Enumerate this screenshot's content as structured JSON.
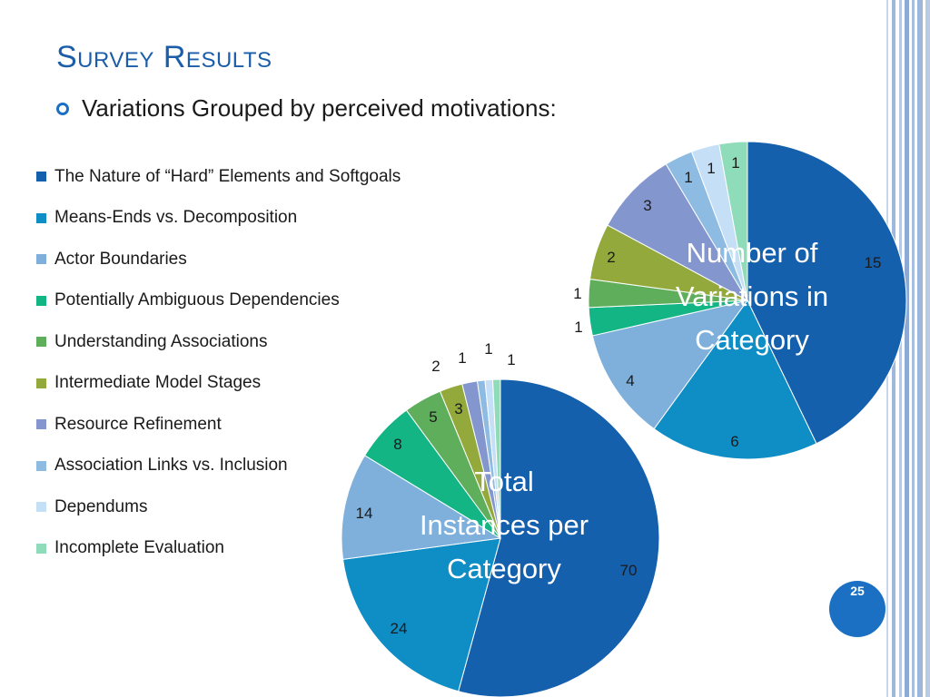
{
  "slide": {
    "title": "Survey Results",
    "subtitle": "Variations Grouped by perceived motivations:",
    "page_number": "25",
    "accent_color": "#1b70c4"
  },
  "legend": [
    {
      "label": "The Nature of “Hard” Elements and Softgoals",
      "color": "#1560ac"
    },
    {
      "label": "Means-Ends vs. Decomposition",
      "color": "#0f8dc5"
    },
    {
      "label": "Actor Boundaries",
      "color": "#7fb0dc"
    },
    {
      "label": "Potentially Ambiguous Dependencies",
      "color": "#13b585"
    },
    {
      "label": "Understanding Associations",
      "color": "#5fae5c"
    },
    {
      "label": "Intermediate Model Stages",
      "color": "#93a93b"
    },
    {
      "label": "Resource Refinement",
      "color": "#8396ce"
    },
    {
      "label": "Association Links vs. Inclusion",
      "color": "#8dbbe2"
    },
    {
      "label": "Dependums",
      "color": "#c4dff6"
    },
    {
      "label": "Incomplete Evaluation",
      "color": "#8fdcbb"
    }
  ],
  "chart_data": [
    {
      "type": "pie",
      "title": "Number of Variations in Category",
      "categories": [
        "The Nature of “Hard” Elements and Softgoals",
        "Means-Ends vs. Decomposition",
        "Actor Boundaries",
        "Potentially Ambiguous Dependencies",
        "Understanding Associations",
        "Intermediate Model Stages",
        "Resource Refinement",
        "Association Links vs. Inclusion",
        "Dependums",
        "Incomplete Evaluation"
      ],
      "values": [
        15,
        6,
        4,
        1,
        1,
        2,
        3,
        1,
        1,
        1
      ],
      "data_labels": [
        "15",
        "6",
        "4",
        "1",
        "1",
        "2",
        "3",
        "1",
        "1",
        "1"
      ]
    },
    {
      "type": "pie",
      "title": "Total Instances per Category",
      "categories": [
        "The Nature of “Hard” Elements and Softgoals",
        "Means-Ends vs. Decomposition",
        "Actor Boundaries",
        "Potentially Ambiguous Dependencies",
        "Understanding Associations",
        "Intermediate Model Stages",
        "Resource Refinement",
        "Association Links vs. Inclusion",
        "Dependums",
        "Incomplete Evaluation"
      ],
      "values": [
        70,
        24,
        14,
        8,
        5,
        3,
        2,
        1,
        1,
        1
      ],
      "data_labels": [
        "70",
        "24",
        "14",
        "8",
        "5",
        "3",
        "2",
        "1",
        "1",
        "1"
      ]
    }
  ]
}
